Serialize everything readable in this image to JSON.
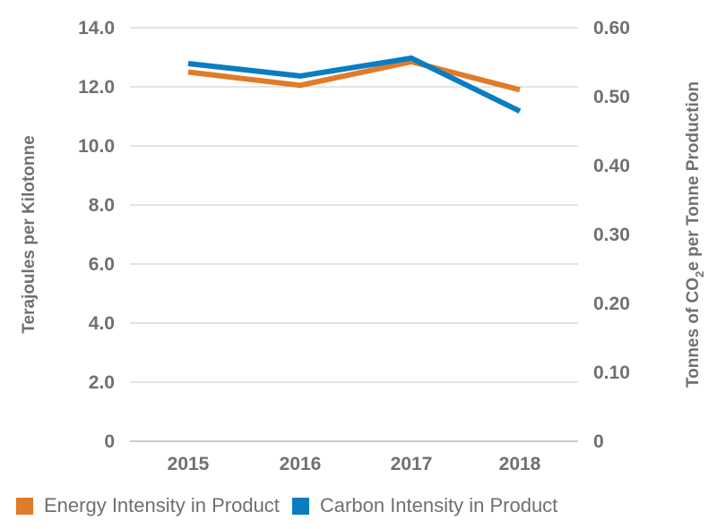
{
  "chart_data": {
    "type": "line",
    "categories": [
      "2015",
      "2016",
      "2017",
      "2018"
    ],
    "left_axis": {
      "label": "Terajoules per Kilotonne",
      "ylim": [
        0,
        14
      ],
      "ticks": [
        "0",
        "2.0",
        "4.0",
        "6.0",
        "8.0",
        "10.0",
        "12.0",
        "14.0"
      ],
      "tick_values": [
        0,
        2,
        4,
        6,
        8,
        10,
        12,
        14
      ]
    },
    "right_axis": {
      "label_parts": [
        "Tonnes of CO",
        "2",
        "e per Tonne Production"
      ],
      "ylim": [
        0,
        0.6
      ],
      "ticks": [
        "0",
        "0.10",
        "0.20",
        "0.30",
        "0.40",
        "0.50",
        "0.60"
      ],
      "tick_values": [
        0,
        0.1,
        0.2,
        0.3,
        0.4,
        0.5,
        0.6
      ]
    },
    "series": [
      {
        "name": "Energy Intensity in Product",
        "axis": "left",
        "color": "#e07b28",
        "values": [
          12.5,
          12.05,
          12.85,
          11.9
        ]
      },
      {
        "name": "Carbon Intensity in Product",
        "axis": "right",
        "color": "#0a7dc2",
        "values": [
          0.548,
          0.53,
          0.556,
          0.479
        ]
      }
    ],
    "grid": true,
    "legend_position": "bottom-left"
  }
}
